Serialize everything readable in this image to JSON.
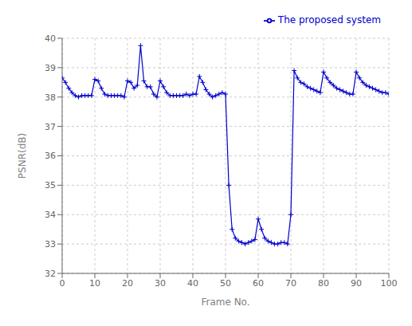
{
  "chart_data": {
    "type": "line",
    "xlabel": "Frame No.",
    "ylabel": "PSNR(dB)",
    "x": [
      0,
      1,
      2,
      3,
      4,
      5,
      6,
      7,
      8,
      9,
      10,
      11,
      12,
      13,
      14,
      15,
      16,
      17,
      18,
      19,
      20,
      21,
      22,
      23,
      24,
      25,
      26,
      27,
      28,
      29,
      30,
      31,
      32,
      33,
      34,
      35,
      36,
      37,
      38,
      39,
      40,
      41,
      42,
      43,
      44,
      45,
      46,
      47,
      48,
      49,
      50,
      51,
      52,
      53,
      54,
      55,
      56,
      57,
      58,
      59,
      60,
      61,
      62,
      63,
      64,
      65,
      66,
      67,
      68,
      69,
      70,
      71,
      72,
      73,
      74,
      75,
      76,
      77,
      78,
      79,
      80,
      81,
      82,
      83,
      84,
      85,
      86,
      87,
      88,
      89,
      90,
      91,
      92,
      93,
      94,
      95,
      96,
      97,
      98,
      99,
      100
    ],
    "series": [
      {
        "name": "The proposed system",
        "color": "#0000cc",
        "marker": "plus",
        "values": [
          38.65,
          38.5,
          38.3,
          38.15,
          38.05,
          38.0,
          38.05,
          38.05,
          38.05,
          38.05,
          38.6,
          38.55,
          38.3,
          38.1,
          38.05,
          38.05,
          38.05,
          38.05,
          38.05,
          38.0,
          38.55,
          38.5,
          38.3,
          38.4,
          39.75,
          38.55,
          38.35,
          38.35,
          38.1,
          38.0,
          38.55,
          38.35,
          38.15,
          38.05,
          38.05,
          38.05,
          38.05,
          38.05,
          38.1,
          38.05,
          38.1,
          38.1,
          38.7,
          38.5,
          38.25,
          38.1,
          38.0,
          38.05,
          38.1,
          38.15,
          38.1,
          35.0,
          33.5,
          33.2,
          33.1,
          33.05,
          33.0,
          33.05,
          33.1,
          33.15,
          33.85,
          33.5,
          33.2,
          33.1,
          33.05,
          33.0,
          33.0,
          33.05,
          33.05,
          33.0,
          34.0,
          38.9,
          38.65,
          38.5,
          38.45,
          38.35,
          38.3,
          38.25,
          38.2,
          38.15,
          38.85,
          38.65,
          38.5,
          38.4,
          38.3,
          38.25,
          38.2,
          38.15,
          38.1,
          38.1,
          38.85,
          38.65,
          38.5,
          38.4,
          38.35,
          38.3,
          38.25,
          38.2,
          38.15,
          38.15,
          38.1
        ]
      }
    ],
    "xlim": [
      0,
      100
    ],
    "xticks": [
      0,
      10,
      20,
      30,
      40,
      50,
      60,
      70,
      80,
      90,
      100
    ],
    "ylim": [
      32,
      40
    ],
    "yticks": [
      32,
      33,
      34,
      35,
      36,
      37,
      38,
      39,
      40
    ],
    "grid": true,
    "legend": "upper right"
  }
}
